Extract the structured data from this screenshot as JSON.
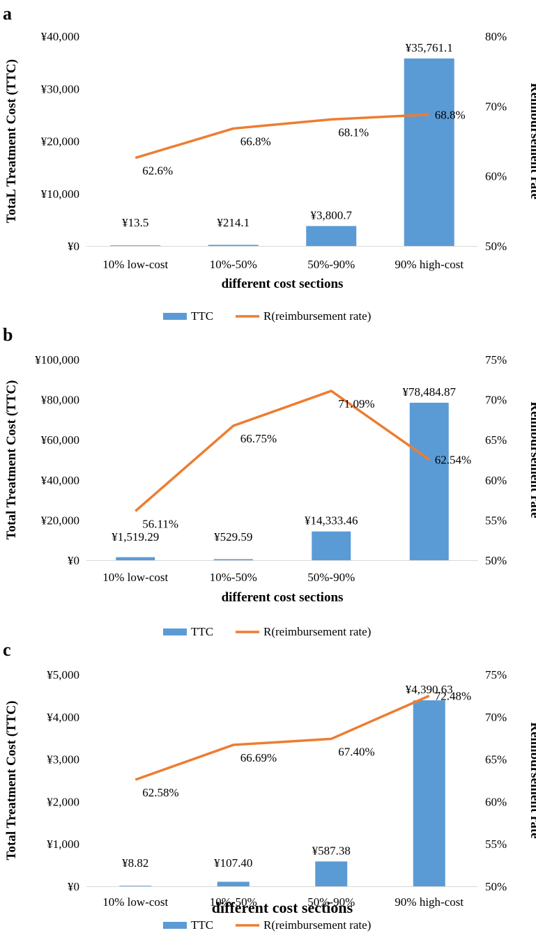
{
  "colors": {
    "bar": "#5b9bd5",
    "line": "#ed7d31",
    "axis": "#d9d9d9",
    "text": "#000000"
  },
  "charts": [
    {
      "panel_label": "a",
      "chart_data": {
        "type": "bar",
        "categories": [
          "10% low-cost",
          "10%-50%",
          "50%-90%",
          "90% high-cost"
        ],
        "xlabel": "different cost sections",
        "ylabel": "TotaL Treatment Cost (TTC)",
        "y2label": "Reimbursement rate",
        "ylim": [
          0,
          40000
        ],
        "y2lim": [
          50,
          80
        ],
        "yticks": [
          "¥0",
          "¥10,000",
          "¥20,000",
          "¥30,000",
          "¥40,000"
        ],
        "y2ticks": [
          "50%",
          "60%",
          "70%",
          "80%"
        ],
        "grid": false,
        "legend_position": "bottom",
        "series": [
          {
            "name": "TTC",
            "type": "bar",
            "axis": "left",
            "values": [
              13.5,
              214.1,
              3800.7,
              35761.1
            ],
            "labels": [
              "¥13.5",
              "¥214.1",
              "¥3,800.7",
              "¥35,761.1"
            ]
          },
          {
            "name": "R(reimbursement rate)",
            "type": "line",
            "axis": "right",
            "values": [
              62.6,
              66.8,
              68.1,
              68.8
            ],
            "labels": [
              "62.6%",
              "66.8%",
              "68.1%",
              "68.8%"
            ]
          }
        ]
      }
    },
    {
      "panel_label": "b",
      "chart_data": {
        "type": "bar",
        "categories": [
          "10% low-cost",
          "10%-50%",
          "50%-90%",
          ""
        ],
        "xlabel": "different cost sections",
        "ylabel": "Total Treatment Cost (TTC)",
        "y2label": "Reimbursement rate",
        "ylim": [
          0,
          100000
        ],
        "y2lim": [
          50,
          75
        ],
        "yticks": [
          "¥0",
          "¥20,000",
          "¥40,000",
          "¥60,000",
          "¥80,000",
          "¥100,000"
        ],
        "y2ticks": [
          "50%",
          "55%",
          "60%",
          "65%",
          "70%",
          "75%"
        ],
        "grid": false,
        "legend_position": "bottom",
        "series": [
          {
            "name": "TTC",
            "type": "bar",
            "axis": "left",
            "values": [
              1519.29,
              529.59,
              14333.46,
              78484.87
            ],
            "labels": [
              "¥1,519.29",
              "¥529.59",
              "¥14,333.46",
              "¥78,484.87"
            ]
          },
          {
            "name": "R(reimbursement rate)",
            "type": "line",
            "axis": "right",
            "values": [
              56.11,
              66.75,
              71.09,
              62.54
            ],
            "labels": [
              "56.11%",
              "66.75%",
              "71.09%",
              "62.54%"
            ]
          }
        ]
      }
    },
    {
      "panel_label": "c",
      "chart_data": {
        "type": "bar",
        "categories": [
          "10% low-cost",
          "10%-50%",
          "50%-90%",
          "90% high-cost"
        ],
        "xlabel": "different cost sections",
        "ylabel": "Total Treatment Cost (TTC)",
        "y2label": "Reimbursement rate",
        "ylim": [
          0,
          5000
        ],
        "y2lim": [
          50,
          75
        ],
        "yticks": [
          "¥0",
          "¥1,000",
          "¥2,000",
          "¥3,000",
          "¥4,000",
          "¥5,000"
        ],
        "y2ticks": [
          "50%",
          "55%",
          "60%",
          "65%",
          "70%",
          "75%"
        ],
        "grid": false,
        "legend_position": "bottom",
        "series": [
          {
            "name": "TTC",
            "type": "bar",
            "axis": "left",
            "values": [
              8.82,
              107.4,
              587.38,
              4390.63
            ],
            "labels": [
              "¥8.82",
              "¥107.40",
              "¥587.38",
              "¥4,390.63"
            ]
          },
          {
            "name": "R(reimbursement rate)",
            "type": "line",
            "axis": "right",
            "values": [
              62.58,
              66.69,
              67.4,
              72.48
            ],
            "labels": [
              "62.58%",
              "66.69%",
              "67.40%",
              "72.48%"
            ]
          }
        ]
      }
    }
  ]
}
